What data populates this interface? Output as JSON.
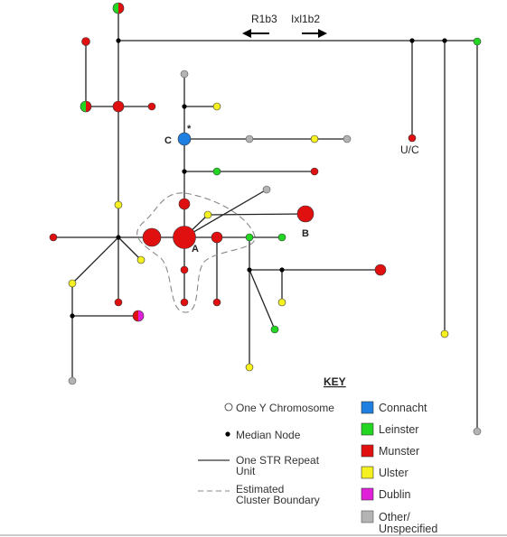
{
  "direction_labels": {
    "left": "R1b3",
    "right": "Ixl1b2"
  },
  "node_labels": {
    "a": "A",
    "b": "B",
    "c": "C",
    "uc": "U/C",
    "star": "*"
  },
  "key": {
    "title": "KEY",
    "one_y": "One Y Chromosome",
    "median": "Median Node",
    "str_line1": "One STR Repeat",
    "str_line2": "Unit",
    "cluster_line1": "Estimated",
    "cluster_line2": "Cluster Boundary",
    "regions": [
      {
        "name": "Connacht",
        "color": "#1f7fe0"
      },
      {
        "name": "Leinster",
        "color": "#22d622"
      },
      {
        "name": "Munster",
        "color": "#e01010"
      },
      {
        "name": "Ulster",
        "color": "#f5f020"
      },
      {
        "name": "Dublin",
        "color": "#e020d8"
      },
      {
        "name": "Other/",
        "name2": "Unspecified",
        "color": "#b3b3b3"
      }
    ]
  },
  "colors": {
    "connacht": "#1f7fe0",
    "leinster": "#22d622",
    "munster": "#e01010",
    "ulster": "#f5f020",
    "dublin": "#e020d8",
    "other": "#b3b3b3"
  }
}
